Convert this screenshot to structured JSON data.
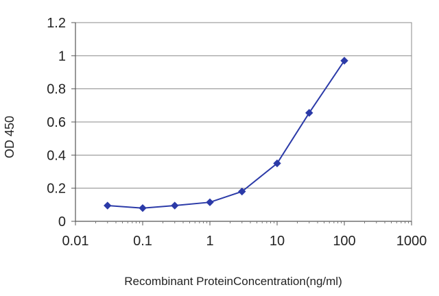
{
  "chart_data": {
    "type": "line",
    "xscale": "log",
    "xlabel": "Recombinant ProteinConcentration(ng/ml)",
    "ylabel": "OD 450",
    "xlim": [
      0.01,
      1000
    ],
    "ylim": [
      0,
      1.2
    ],
    "x_ticks": [
      0.01,
      0.1,
      1,
      10,
      100,
      1000
    ],
    "x_tick_labels": [
      "0.01",
      "0.1",
      "1",
      "10",
      "100",
      "1000"
    ],
    "y_ticks": [
      0,
      0.2,
      0.4,
      0.6,
      0.8,
      1,
      1.2
    ],
    "y_tick_labels": [
      "0",
      "0.2",
      "0.4",
      "0.6",
      "0.8",
      "1",
      "1.2"
    ],
    "grid": "horizontal",
    "legend": "none",
    "series": [
      {
        "color": "#2b3aa8",
        "marker": "diamond",
        "x": [
          0.03,
          0.1,
          0.3,
          1,
          3,
          10,
          30,
          100
        ],
        "y": [
          0.095,
          0.08,
          0.095,
          0.115,
          0.18,
          0.35,
          0.655,
          0.97
        ]
      }
    ]
  }
}
